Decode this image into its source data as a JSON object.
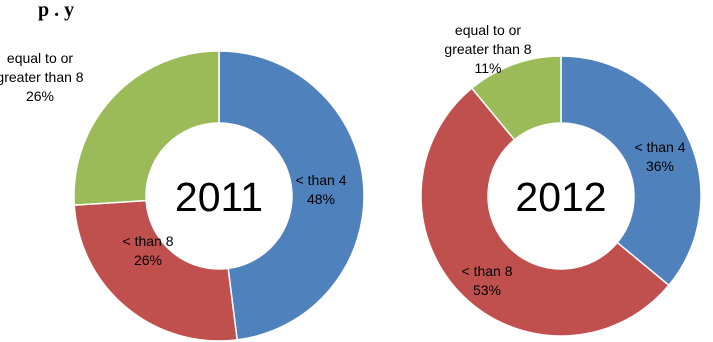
{
  "header": {
    "title_fragment": "p . y"
  },
  "chart_data": [
    {
      "type": "pie",
      "title": "2011",
      "categories": [
        "< than 4",
        "< than 8",
        "equal to or greater than 8"
      ],
      "values": [
        48,
        26,
        26
      ],
      "slices": [
        {
          "name": "< than 4",
          "value": 48,
          "label_lines": [
            "< than 4",
            "48%"
          ],
          "color": "#4f81bd"
        },
        {
          "name": "< than 8",
          "value": 26,
          "label_lines": [
            "< than 8",
            "26%"
          ],
          "color": "#c0504d"
        },
        {
          "name": "equal to or greater than 8",
          "value": 26,
          "label_lines": [
            "equal to or",
            "greater than 8",
            "26%"
          ],
          "color": "#9bbb59"
        }
      ]
    },
    {
      "type": "pie",
      "title": "2012",
      "categories": [
        "< than 4",
        "< than 8",
        "equal to or greater than 8"
      ],
      "values": [
        36,
        53,
        11
      ],
      "slices": [
        {
          "name": "< than 4",
          "value": 36,
          "label_lines": [
            "< than 4",
            "36%"
          ],
          "color": "#4f81bd"
        },
        {
          "name": "< than 8",
          "value": 53,
          "label_lines": [
            "< than 8",
            "53%"
          ],
          "color": "#c0504d"
        },
        {
          "name": "equal to or greater than 8",
          "value": 11,
          "label_lines": [
            "equal to or",
            "greater than 8",
            "11%"
          ],
          "color": "#9bbb59"
        }
      ]
    }
  ]
}
